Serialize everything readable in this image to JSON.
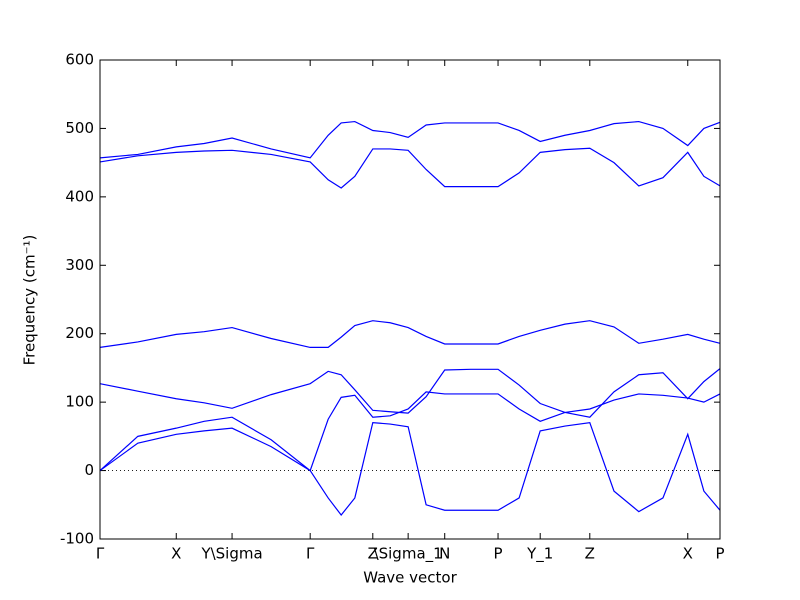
{
  "chart_data": {
    "type": "line",
    "xlabel": "Wave vector",
    "ylabel": "Frequency (cm⁻¹)",
    "x": [
      0,
      0.061,
      0.123,
      0.168,
      0.213,
      0.276,
      0.339,
      0.368,
      0.389,
      0.411,
      0.44,
      0.468,
      0.497,
      0.526,
      0.556,
      0.598,
      0.642,
      0.676,
      0.71,
      0.75,
      0.79,
      0.829,
      0.869,
      0.908,
      0.948,
      0.974,
      1
    ],
    "series": [
      {
        "color": "#0000ff",
        "values": [
          457,
          462,
          473,
          478,
          486,
          470,
          457,
          490,
          508,
          510,
          497,
          494,
          487,
          505,
          508,
          508,
          508,
          497,
          481,
          490,
          497,
          507,
          510,
          500,
          475,
          500,
          509
        ]
      },
      {
        "color": "#0000ff",
        "values": [
          451,
          460,
          465,
          467,
          468,
          462,
          451,
          425,
          413,
          430,
          470,
          470,
          468,
          440,
          415,
          415,
          415,
          435,
          465,
          469,
          471,
          450,
          416,
          428,
          465,
          430,
          416
        ]
      },
      {
        "color": "#0000ff",
        "values": [
          180,
          188,
          199,
          203,
          209,
          193,
          180,
          180,
          195,
          212,
          219,
          216,
          209,
          196,
          185,
          185,
          185,
          196,
          205,
          214,
          219,
          210,
          186,
          192,
          199,
          192,
          186
        ]
      },
      {
        "color": "#0000ff",
        "values": [
          127,
          116,
          105,
          99,
          91,
          111,
          127,
          145,
          140,
          118,
          88,
          86,
          84,
          108,
          147,
          148,
          148,
          125,
          98,
          85,
          78,
          115,
          140,
          143,
          105,
          130,
          149
        ]
      },
      {
        "color": "#0000ff",
        "values": [
          0,
          50,
          62,
          72,
          78,
          45,
          0,
          75,
          107,
          110,
          78,
          80,
          90,
          115,
          112,
          112,
          112,
          90,
          72,
          85,
          90,
          103,
          112,
          110,
          106,
          100,
          112
        ]
      },
      {
        "color": "#0000ff",
        "values": [
          0,
          40,
          53,
          58,
          62,
          35,
          0,
          -40,
          -65,
          -40,
          70,
          68,
          64,
          -50,
          -58,
          -58,
          -58,
          -40,
          58,
          65,
          70,
          -30,
          -60,
          -40,
          53,
          -30,
          -58
        ]
      }
    ],
    "xlim": [
      0,
      1
    ],
    "xticks": [
      {
        "value": 0,
        "label": "Γ"
      },
      {
        "value": 0.123,
        "label": "X"
      },
      {
        "value": 0.213,
        "label": "Y\\Sigma"
      },
      {
        "value": 0.339,
        "label": "Γ"
      },
      {
        "value": 0.44,
        "label": "Z"
      },
      {
        "value": 0.497,
        "label": "\\Sigma_1"
      },
      {
        "value": 0.556,
        "label": "N"
      },
      {
        "value": 0.642,
        "label": "P"
      },
      {
        "value": 0.71,
        "label": "Y_1"
      },
      {
        "value": 0.79,
        "label": "Z"
      },
      {
        "value": 0.948,
        "label": "X"
      },
      {
        "value": 1,
        "label": "P"
      }
    ],
    "ylim": [
      -100,
      600
    ],
    "yticks": [
      -100,
      0,
      100,
      200,
      300,
      400,
      500,
      600
    ]
  }
}
